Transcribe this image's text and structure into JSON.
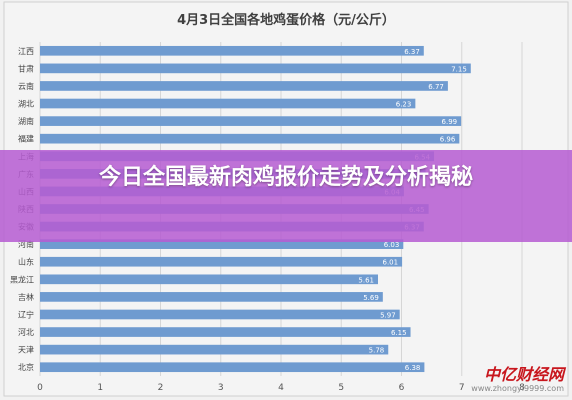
{
  "chart_data": {
    "type": "bar",
    "orientation": "horizontal",
    "title": "4月3日全国各地鸡蛋价格（元/公斤）",
    "categories": [
      "江西",
      "甘肃",
      "云南",
      "湖北",
      "湖南",
      "福建",
      "上海",
      "广东",
      "山西",
      "陕西",
      "安徽",
      "河南",
      "山东",
      "黑龙江",
      "吉林",
      "辽宁",
      "河北",
      "天津",
      "北京"
    ],
    "values": [
      6.37,
      7.15,
      6.77,
      6.23,
      6.99,
      6.96,
      6.54,
      6.4,
      6.04,
      6.45,
      6.37,
      6.03,
      6.01,
      5.61,
      5.69,
      5.97,
      6.15,
      5.78,
      6.38
    ],
    "value_labels": [
      "6.37",
      "7.15",
      "6.77",
      "6.23",
      "6.99",
      "6.96",
      "6.54",
      "6.4",
      "6.04",
      "6.45",
      "6.37",
      "6.03",
      "6.01",
      "5.61",
      "5.69",
      "5.97",
      "6.15",
      "5.78",
      "6.38"
    ],
    "xlim": [
      0,
      8
    ],
    "xticks": [
      "0",
      "1",
      "2",
      "3",
      "4",
      "5",
      "6",
      "7",
      "8"
    ],
    "grid": true,
    "legend": "none",
    "bar_color": "#6f9bd0"
  },
  "banner": {
    "title": "今日全国最新肉鸡报价走势及分析揭秘"
  },
  "watermark": {
    "logo": "中亿财经网",
    "url": "www.zhongyi9999.com"
  }
}
